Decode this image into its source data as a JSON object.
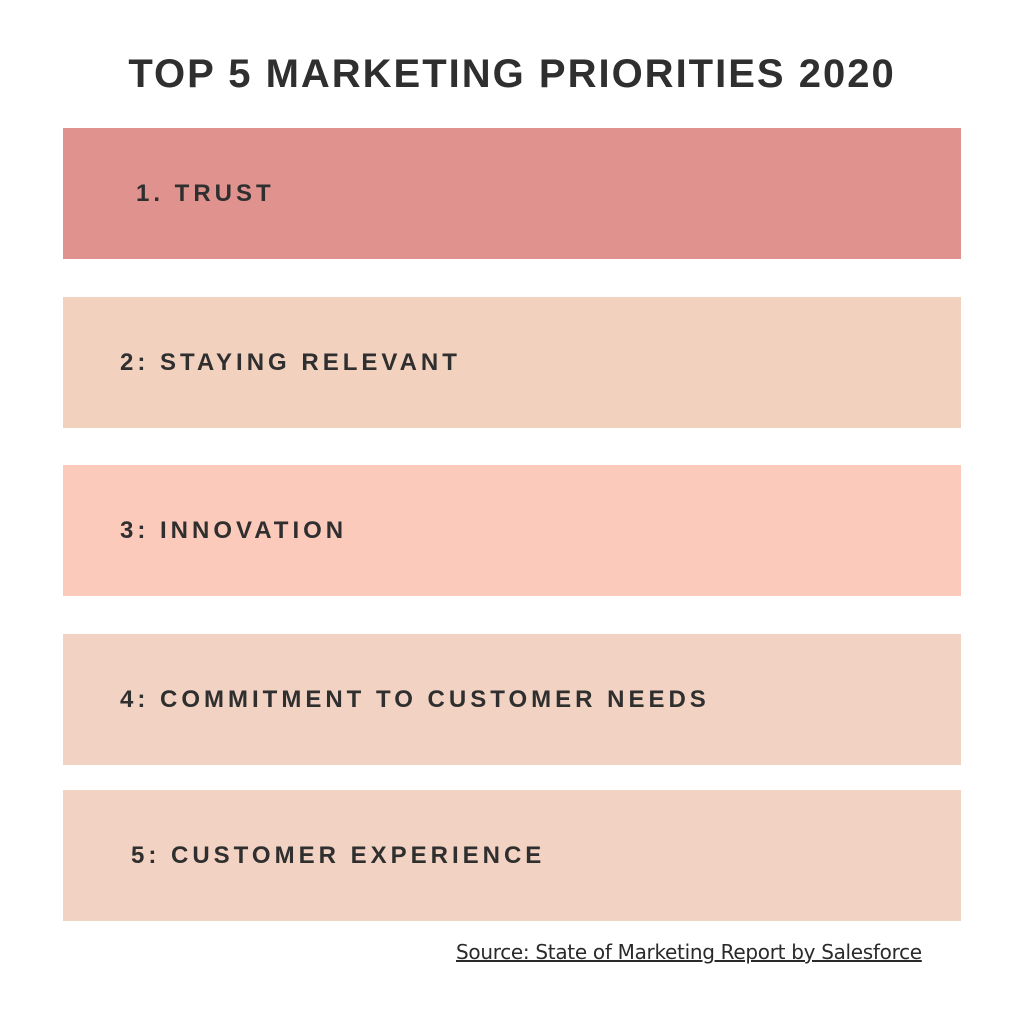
{
  "title": "TOP 5 MARKETING PRIORITIES 2020",
  "items": [
    {
      "label": "1. TRUST",
      "color": "#E0938E"
    },
    {
      "label": "2: STAYING RELEVANT",
      "color": "#F2D2BF"
    },
    {
      "label": "3: INNOVATION",
      "color": "#FBCABA"
    },
    {
      "label": "4: COMMITMENT TO CUSTOMER NEEDS",
      "color": "#F2D2C2"
    },
    {
      "label": "5: CUSTOMER EXPERIENCE",
      "color": "#F2D2C2"
    }
  ],
  "source": "Source: State of Marketing Report by Salesforce"
}
